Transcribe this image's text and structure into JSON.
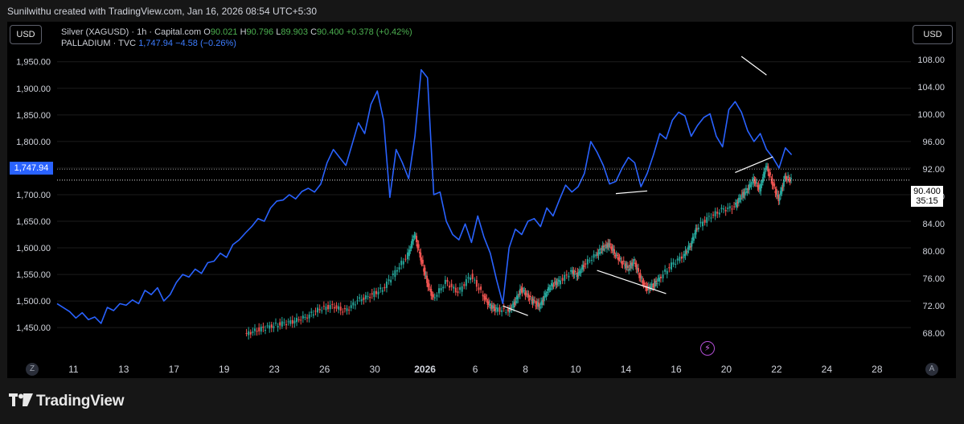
{
  "header": {
    "attribution": "Sunilwithu created with TradingView.com, Jan 16, 2026 08:54 UTC+5:30"
  },
  "toolbar": {
    "left_currency": "USD",
    "right_currency": "USD"
  },
  "legend": {
    "silver": {
      "symbol": "Silver (XAGUSD) · 1h · Capital.com",
      "o_label": "O",
      "o_value": "90.021",
      "h_label": "H",
      "h_value": "90.796",
      "l_label": "L",
      "l_value": "89.903",
      "c_label": "C",
      "c_value": "90.400",
      "change": "+0.378 (+0.42%)"
    },
    "palladium": {
      "symbol": "PALLADIUM · TVC",
      "last": "1,747.94",
      "change": "−4.58 (−0.26%)"
    }
  },
  "price_tags": {
    "palladium_last": "1,747.94",
    "silver_last": "90.400",
    "countdown": "35:15"
  },
  "bottom": {
    "left_button": "Z",
    "right_button": "A"
  },
  "branding": {
    "logo_text": "TradingView"
  },
  "colors": {
    "palladium_line": "#2962ff",
    "candle_up": "#26a69a",
    "candle_down": "#ef5350",
    "background": "#000000",
    "trendline": "#ffffff",
    "event_marker": "#b24ed6"
  },
  "chart_data": {
    "type": "line",
    "x_tick_labels": [
      "11",
      "13",
      "17",
      "19",
      "23",
      "26",
      "30",
      "2026",
      "6",
      "8",
      "10",
      "14",
      "16",
      "20",
      "22",
      "24",
      "28"
    ],
    "left_axis": {
      "series": "PALLADIUM",
      "ticks": [
        "1,950.00",
        "1,900.00",
        "1,850.00",
        "1,800.00",
        "1,750.00",
        "1,700.00",
        "1,650.00",
        "1,600.00",
        "1,550.00",
        "1,500.00",
        "1,450.00"
      ],
      "range": [
        1420,
        1995
      ]
    },
    "right_axis": {
      "series": "Silver (XAGUSD)",
      "ticks": [
        "108.00",
        "104.00",
        "100.00",
        "96.00",
        "92.00",
        "88.00",
        "84.00",
        "80.00",
        "76.00",
        "72.00",
        "68.00"
      ],
      "range": [
        66.5,
        111.2
      ]
    },
    "palladium_series": {
      "name": "PALLADIUM",
      "type": "line",
      "points": [
        [
          0,
          1495
        ],
        [
          1,
          1480
        ],
        [
          1.5,
          1468
        ],
        [
          2,
          1478
        ],
        [
          2.5,
          1465
        ],
        [
          3,
          1470
        ],
        [
          3.5,
          1458
        ],
        [
          4,
          1488
        ],
        [
          4.5,
          1482
        ],
        [
          5,
          1495
        ],
        [
          5.5,
          1492
        ],
        [
          6,
          1502
        ],
        [
          6.5,
          1495
        ],
        [
          7,
          1520
        ],
        [
          7.5,
          1512
        ],
        [
          8,
          1525
        ],
        [
          8.5,
          1500
        ],
        [
          9,
          1512
        ],
        [
          9.5,
          1535
        ],
        [
          10,
          1550
        ],
        [
          10.5,
          1545
        ],
        [
          11,
          1560
        ],
        [
          11.5,
          1552
        ],
        [
          12,
          1572
        ],
        [
          12.5,
          1575
        ],
        [
          13,
          1590
        ],
        [
          13.5,
          1582
        ],
        [
          14,
          1606
        ],
        [
          14.5,
          1615
        ],
        [
          15,
          1628
        ],
        [
          15.5,
          1640
        ],
        [
          16,
          1655
        ],
        [
          16.5,
          1650
        ],
        [
          17,
          1675
        ],
        [
          17.5,
          1688
        ],
        [
          18,
          1690
        ],
        [
          18.5,
          1700
        ],
        [
          19,
          1692
        ],
        [
          19.5,
          1706
        ],
        [
          20,
          1712
        ],
        [
          20.5,
          1705
        ],
        [
          21,
          1720
        ],
        [
          21.5,
          1760
        ],
        [
          22,
          1785
        ],
        [
          22.5,
          1770
        ],
        [
          23,
          1755
        ],
        [
          23.5,
          1795
        ],
        [
          24,
          1835
        ],
        [
          24.5,
          1815
        ],
        [
          25,
          1870
        ],
        [
          25.5,
          1895
        ],
        [
          26,
          1840
        ],
        [
          26.5,
          1695
        ],
        [
          27,
          1785
        ],
        [
          27.5,
          1760
        ],
        [
          28,
          1730
        ],
        [
          28.5,
          1810
        ],
        [
          29,
          1935
        ],
        [
          29.5,
          1920
        ],
        [
          30,
          1700
        ],
        [
          30.5,
          1705
        ],
        [
          31,
          1650
        ],
        [
          31.5,
          1625
        ],
        [
          32,
          1615
        ],
        [
          32.5,
          1645
        ],
        [
          33,
          1610
        ],
        [
          33.5,
          1660
        ],
        [
          34,
          1620
        ],
        [
          34.5,
          1590
        ],
        [
          35,
          1540
        ],
        [
          35.5,
          1495
        ],
        [
          36,
          1600
        ],
        [
          36.5,
          1635
        ],
        [
          37,
          1625
        ],
        [
          37.5,
          1650
        ],
        [
          38,
          1655
        ],
        [
          38.5,
          1640
        ],
        [
          39,
          1675
        ],
        [
          39.5,
          1660
        ],
        [
          40,
          1690
        ],
        [
          40.5,
          1718
        ],
        [
          41,
          1705
        ],
        [
          41.5,
          1715
        ],
        [
          42,
          1740
        ],
        [
          42.5,
          1800
        ],
        [
          43,
          1780
        ],
        [
          43.5,
          1755
        ],
        [
          44,
          1720
        ],
        [
          44.5,
          1725
        ],
        [
          45,
          1750
        ],
        [
          45.5,
          1770
        ],
        [
          46,
          1760
        ],
        [
          46.5,
          1715
        ],
        [
          47,
          1740
        ],
        [
          47.5,
          1775
        ],
        [
          48,
          1815
        ],
        [
          48.5,
          1805
        ],
        [
          49,
          1840
        ],
        [
          49.5,
          1855
        ],
        [
          50,
          1848
        ],
        [
          50.5,
          1810
        ],
        [
          51,
          1830
        ],
        [
          51.5,
          1845
        ],
        [
          52,
          1852
        ],
        [
          52.5,
          1810
        ],
        [
          53,
          1790
        ],
        [
          53.5,
          1860
        ],
        [
          54,
          1875
        ],
        [
          54.5,
          1855
        ],
        [
          55,
          1820
        ],
        [
          55.5,
          1800
        ],
        [
          56,
          1815
        ],
        [
          56.5,
          1785
        ],
        [
          57,
          1770
        ],
        [
          57.5,
          1750
        ],
        [
          58,
          1788
        ],
        [
          58.5,
          1775
        ]
      ]
    },
    "silver_series": {
      "name": "Silver (XAGUSD)",
      "type": "candlestick",
      "points": [
        [
          15,
          67.8
        ],
        [
          16,
          68.5
        ],
        [
          17,
          69.0
        ],
        [
          18,
          69.4
        ],
        [
          19,
          69.8
        ],
        [
          20,
          70.5
        ],
        [
          21,
          71.6
        ],
        [
          22,
          72.0
        ],
        [
          23,
          71.2
        ],
        [
          24,
          72.8
        ],
        [
          25,
          73.5
        ],
        [
          26,
          74.5
        ],
        [
          27,
          77.0
        ],
        [
          28,
          79.5
        ],
        [
          28.5,
          82.5
        ],
        [
          29,
          79.0
        ],
        [
          29.5,
          75.5
        ],
        [
          30,
          73.0
        ],
        [
          31,
          75.5
        ],
        [
          32,
          74.0
        ],
        [
          33,
          76.5
        ],
        [
          34,
          73.5
        ],
        [
          34.5,
          72.0
        ],
        [
          35,
          71.5
        ],
        [
          36,
          71.3
        ],
        [
          36.5,
          72.5
        ],
        [
          37,
          74.5
        ],
        [
          37.5,
          73.5
        ],
        [
          38,
          72.5
        ],
        [
          38.5,
          72.0
        ],
        [
          39,
          74.0
        ],
        [
          39.5,
          75.2
        ],
        [
          40,
          75.5
        ],
        [
          41,
          77.0
        ],
        [
          41.5,
          76.5
        ],
        [
          42,
          78.0
        ],
        [
          43,
          79.5
        ],
        [
          43.5,
          80.5
        ],
        [
          44,
          81.0
        ],
        [
          44.5,
          79.5
        ],
        [
          45,
          78.5
        ],
        [
          45.5,
          77.5
        ],
        [
          46,
          78.5
        ],
        [
          46.5,
          76.0
        ],
        [
          47,
          74.5
        ],
        [
          47.5,
          75.0
        ],
        [
          48,
          76.0
        ],
        [
          49,
          78.0
        ],
        [
          50,
          79.5
        ],
        [
          50.5,
          81.0
        ],
        [
          51,
          83.5
        ],
        [
          52,
          85.0
        ],
        [
          53,
          86.0
        ],
        [
          54,
          86.5
        ],
        [
          54.5,
          88.0
        ],
        [
          55,
          89.0
        ],
        [
          55.5,
          90.5
        ],
        [
          56,
          89.0
        ],
        [
          56.5,
          92.5
        ],
        [
          57,
          90.0
        ],
        [
          57.5,
          87.5
        ],
        [
          58,
          90.8
        ],
        [
          58.5,
          90.4
        ]
      ]
    },
    "trendlines": [
      {
        "from": [
          35.5,
          72.0
        ],
        "to": [
          37.5,
          70.6
        ],
        "axis": "right"
      },
      {
        "from": [
          43,
          77.2
        ],
        "to": [
          48.5,
          73.8
        ],
        "axis": "right"
      },
      {
        "from": [
          54,
          91.5
        ],
        "to": [
          57,
          93.8
        ],
        "axis": "right"
      },
      {
        "from": [
          44.5,
          1702
        ],
        "to": [
          47,
          1707
        ],
        "axis": "left"
      },
      {
        "from": [
          54.5,
          1960
        ],
        "to": [
          56.5,
          1925
        ],
        "axis": "left"
      }
    ],
    "last_price_lines": {
      "palladium": 1747.94,
      "silver": 90.4
    },
    "grid": true,
    "legend_position": "top-left"
  }
}
